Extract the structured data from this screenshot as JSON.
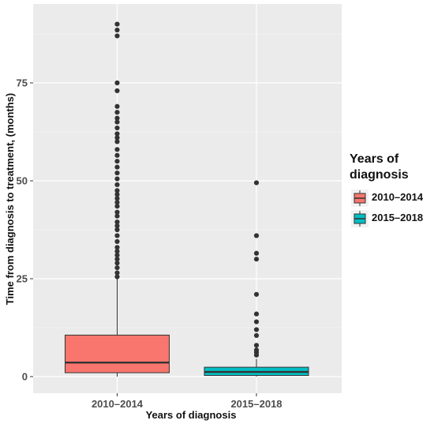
{
  "chart_data": {
    "type": "boxplot",
    "title": "",
    "xlabel": "Years of diagnosis",
    "ylabel": "Time from diagnosis to treatment, (months)",
    "ylim": [
      -3,
      95
    ],
    "yticks": [
      0,
      25,
      50,
      75
    ],
    "categories": [
      "2010–2014",
      "2015–2018"
    ],
    "grid": true,
    "legend": {
      "title_line1": "Years of",
      "title_line2": "diagnosis",
      "position": "right",
      "entries": [
        "2010–2014",
        "2015–2018"
      ]
    },
    "series": [
      {
        "category": "2010–2014",
        "color": "#F8766D",
        "whisker_low": 0,
        "q1": 1,
        "median": 3.6,
        "q3": 10.6,
        "whisker_high": 25,
        "outliers": [
          25.5,
          26.5,
          27.8,
          29,
          30,
          31,
          32,
          33,
          34.5,
          36,
          37.5,
          38.5,
          39.5,
          41,
          42,
          43.5,
          44.5,
          45.5,
          46.5,
          47.5,
          49,
          50.5,
          52,
          53.5,
          55,
          56.5,
          58,
          60,
          61,
          62,
          63.5,
          65,
          66,
          67.5,
          69,
          73,
          75,
          87,
          88.5,
          90
        ]
      },
      {
        "category": "2015–2018",
        "color": "#00BFC4",
        "whisker_low": 0,
        "q1": 0.3,
        "median": 1.2,
        "q3": 2.4,
        "whisker_high": 4.5,
        "outliers": [
          5.5,
          6.2,
          6.8,
          8,
          10.5,
          12,
          14,
          16,
          21,
          30,
          31.5,
          36,
          49.5
        ]
      }
    ]
  }
}
